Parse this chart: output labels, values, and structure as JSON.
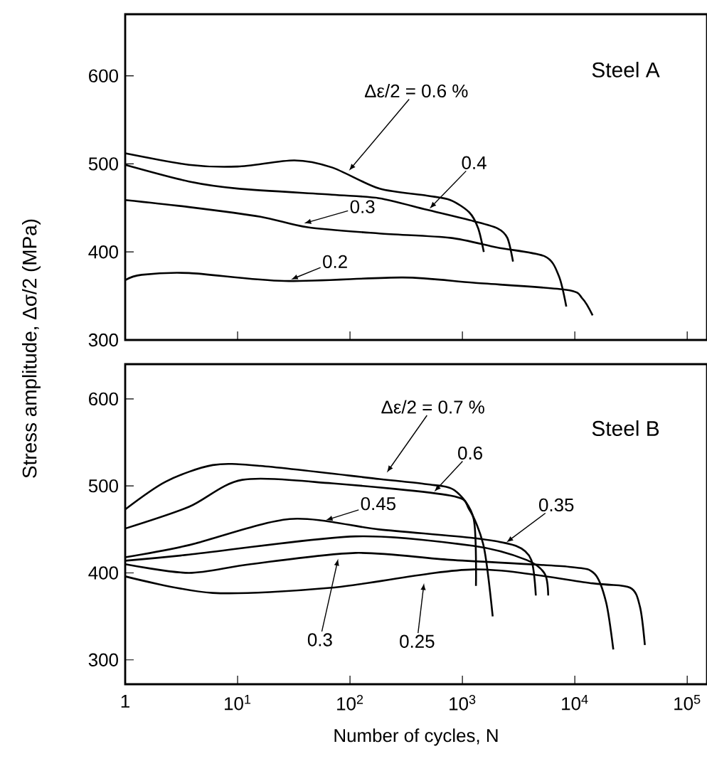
{
  "chart_data": [
    {
      "type": "line",
      "ylabel": "Stress amplitude, Δσ/2 (MPa)",
      "log": "x",
      "marker": "none",
      "line_style": "solid",
      "tick_labels": "y",
      "xlim": [
        1,
        150000
      ],
      "ylim": [
        300,
        670
      ],
      "xticks": [
        1,
        {
          "value": 10,
          "label": null
        },
        {
          "value": 100,
          "label": null
        },
        {
          "value": 1000,
          "label": null
        },
        {
          "value": 10000,
          "label": null
        },
        {
          "value": 100000,
          "label": null
        }
      ],
      "yticks": [
        300,
        400,
        500,
        600
      ],
      "series": [
        {
          "color": "#000000",
          "x": [
            1,
            3.7,
            10,
            32,
            69,
            182,
            480,
            780,
            1150,
            1380,
            1550
          ],
          "values": [
            512,
            499,
            497,
            504,
            496,
            472,
            464,
            459,
            445,
            427,
            400
          ]
        },
        {
          "color": "#000000",
          "x": [
            1,
            3.7,
            10,
            69,
            182,
            480,
            1260,
            2040,
            2510,
            2820
          ],
          "values": [
            499,
            480,
            472,
            465,
            461,
            448,
            435,
            427,
            416,
            389
          ]
        },
        {
          "color": "#000000",
          "x": [
            1,
            3.7,
            16,
            42,
            182,
            780,
            2040,
            5400,
            7200,
            8400
          ],
          "values": [
            459,
            451,
            440,
            428,
            421,
            416,
            405,
            395,
            373,
            338
          ]
        },
        {
          "color": "#000000",
          "x": [
            1,
            1.4,
            3.7,
            26,
            295,
            1260,
            8400,
            11700,
            14400
          ],
          "values": [
            368,
            374,
            376,
            367,
            371,
            365,
            357,
            347,
            328
          ]
        }
      ],
      "annotations": [
        "Steel A",
        {
          "text": "Δε/2 = 0.6 %",
          "x": 96,
          "y": 491
        },
        {
          "text": "0.4",
          "x": 500,
          "y": 448
        },
        {
          "text": "0.3",
          "x": 38,
          "y": 432
        },
        {
          "text": "0.2",
          "x": 29,
          "y": 368
        }
      ]
    },
    {
      "type": "line",
      "xlabel": "Number of cycles, N",
      "log": "x",
      "marker": "none",
      "line_style": "solid",
      "xlim": [
        1,
        150000
      ],
      "ylim": [
        272,
        640
      ],
      "xticks": [
        1,
        {
          "value": 10,
          "label": "10$^{1}$"
        },
        {
          "value": 100,
          "label": "10$^{2}$"
        },
        {
          "value": 1000,
          "label": "10$^{3}$"
        },
        {
          "value": 10000,
          "label": "10$^{4}$"
        },
        {
          "value": 100000,
          "label": "10$^{5}$"
        }
      ],
      "yticks": [
        300,
        400,
        500,
        600
      ],
      "series": [
        {
          "color": "#000000",
          "x": [
            1,
            2.3,
            6,
            16,
            182,
            480,
            850,
            1260,
            1320
          ],
          "values": [
            473,
            505,
            524,
            523,
            508,
            502,
            495,
            462,
            385
          ]
        },
        {
          "color": "#000000",
          "x": [
            1,
            3.7,
            11,
            69,
            780,
            1150,
            1550,
            1860
          ],
          "values": [
            451,
            476,
            507,
            503,
            489,
            473,
            430,
            350
          ]
        },
        {
          "color": "#000000",
          "x": [
            1,
            3.7,
            29,
            182,
            1260,
            3000,
            4100,
            4500
          ],
          "values": [
            418,
            432,
            462,
            450,
            440,
            431,
            415,
            374
          ]
        },
        {
          "color": "#000000",
          "x": [
            1,
            3.7,
            112,
            1260,
            3700,
            5400,
            5800
          ],
          "values": [
            414,
            421,
            442,
            431,
            415,
            399,
            374
          ]
        },
        {
          "color": "#000000",
          "x": [
            1,
            3.7,
            13,
            112,
            780,
            8900,
            15000,
            19000,
            22000
          ],
          "values": [
            410,
            400,
            410,
            423,
            415,
            407,
            399,
            366,
            312
          ]
        },
        {
          "color": "#000000",
          "x": [
            1,
            6,
            69,
            1260,
            14400,
            31000,
            38000,
            42000
          ],
          "values": [
            396,
            377,
            383,
            404,
            388,
            383,
            361,
            317
          ]
        }
      ],
      "annotations": [
        "Steel B",
        {
          "text": "Δε/2 = 0.7 %",
          "x": 209,
          "y": 514
        },
        {
          "text": "0.6",
          "x": 550,
          "y": 492
        },
        {
          "text": "0.45",
          "x": 59,
          "y": 460
        },
        {
          "text": "0.35",
          "x": 2400,
          "y": 434
        },
        {
          "text": "0.3",
          "x": 79,
          "y": 418
        },
        {
          "text": "0.25",
          "x": 457,
          "y": 390
        }
      ]
    }
  ]
}
